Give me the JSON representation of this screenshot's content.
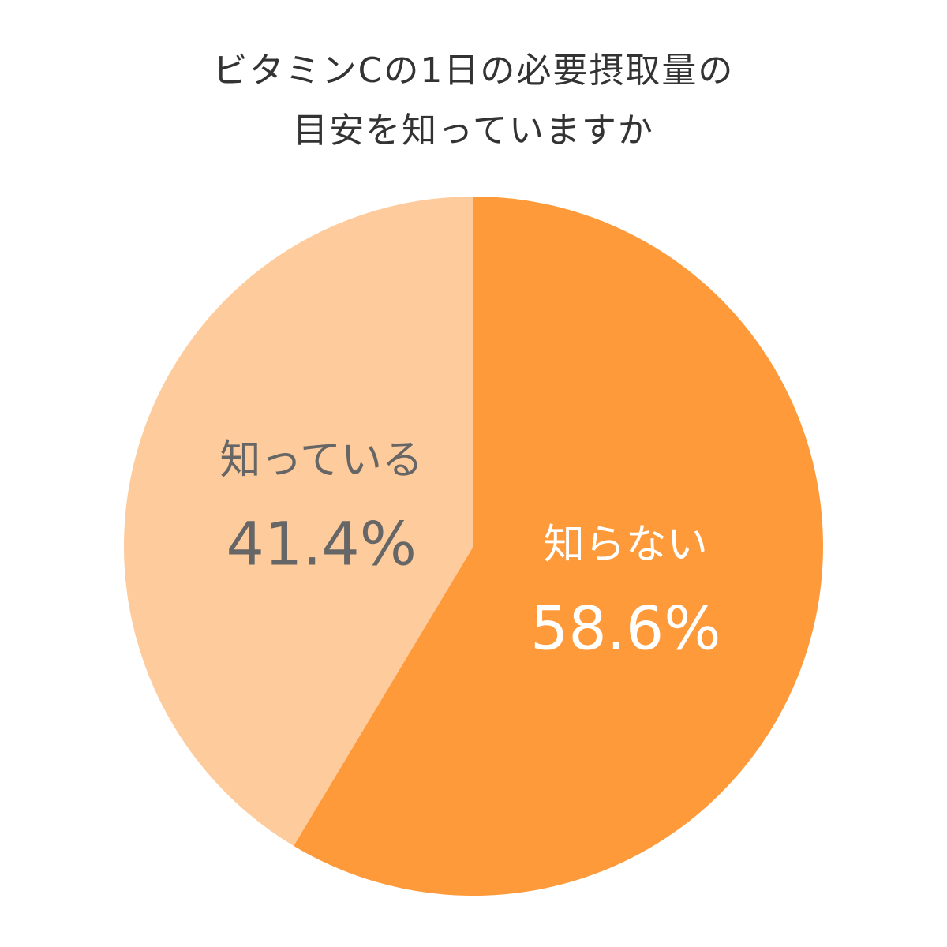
{
  "chart_data": {
    "type": "pie",
    "title": [
      "ビタミンCの1日の必要摂取量の",
      "目安を知っていますか"
    ],
    "categories": [
      "知らない",
      "知っている"
    ],
    "values": [
      58.6,
      41.4
    ],
    "value_labels": [
      "58.6%",
      "41.4%"
    ],
    "colors": [
      "#fe9a3a",
      "#fecb9c"
    ]
  }
}
